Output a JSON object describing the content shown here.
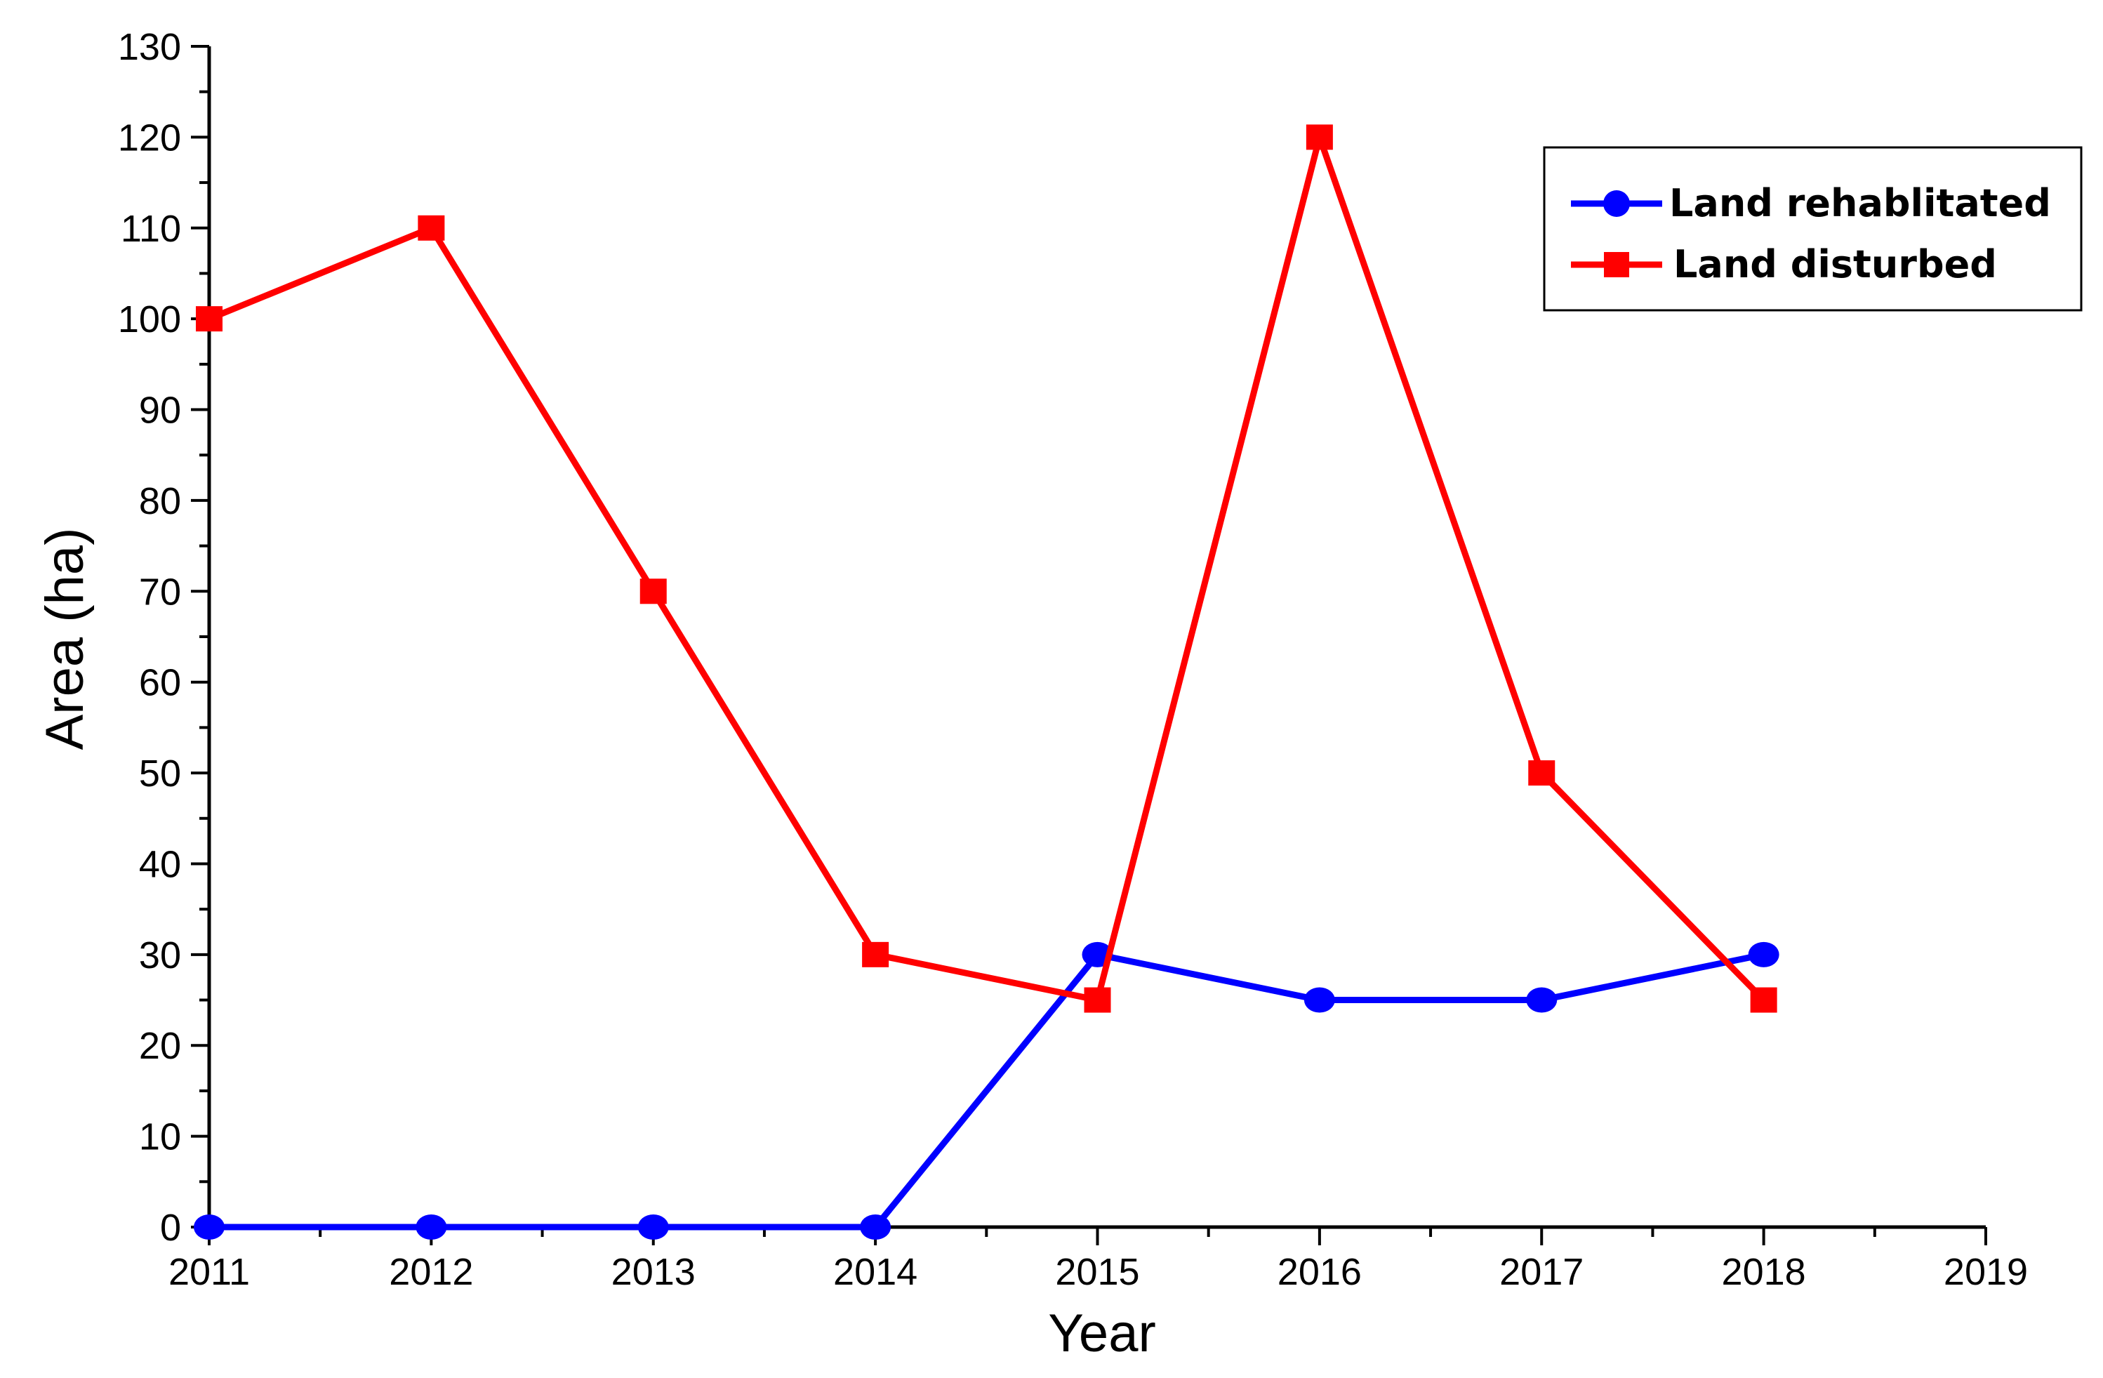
{
  "chart_data": {
    "type": "line",
    "xlabel": "Year",
    "ylabel": "Area (ha)",
    "xlim": [
      2011,
      2019
    ],
    "ylim": [
      0,
      130
    ],
    "x_ticks": [
      "2011",
      "2012",
      "2013",
      "2014",
      "2015",
      "2016",
      "2017",
      "2018",
      "2019"
    ],
    "y_ticks": [
      "0",
      "10",
      "20",
      "30",
      "40",
      "50",
      "60",
      "70",
      "80",
      "90",
      "100",
      "110",
      "120",
      "130"
    ],
    "x": [
      2011,
      2012,
      2013,
      2014,
      2015,
      2016,
      2017,
      2018
    ],
    "series": [
      {
        "name": "Land rehablitated",
        "values": [
          0,
          0,
          0,
          0,
          30,
          25,
          25,
          30
        ],
        "color": "#0000ff",
        "marker": "circle"
      },
      {
        "name": "Land disturbed",
        "values": [
          100,
          110,
          70,
          30,
          25,
          120,
          50,
          25
        ],
        "color": "#ff0000",
        "marker": "square"
      }
    ],
    "legend_position": "top-right",
    "grid": false
  }
}
